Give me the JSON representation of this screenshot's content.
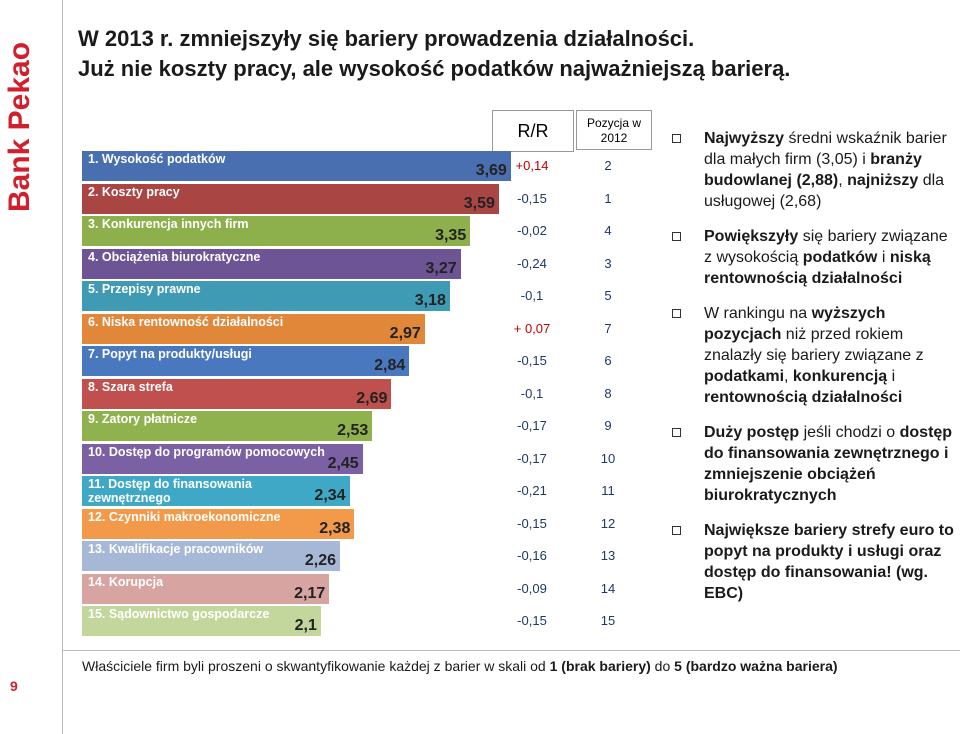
{
  "logo": "Bank Pekao",
  "page_number": "9",
  "title_lines": [
    "W 2013 r. zmniejszyły się bariery prowadzenia działalności.",
    "Już nie koszty pracy, ale wysokość podatków najważniejszą barierą."
  ],
  "chart_data": {
    "type": "bar",
    "categories": [
      "1. Wysokość podatków",
      "2. Koszty pracy",
      "3. Konkurencja innych firm",
      "4. Obciążenia biurokratyczne",
      "5. Przepisy prawne",
      "6. Niska rentowność działalności",
      "7. Popyt na produkty/usługi",
      "8. Szara strefa",
      "9. Zatory płatnicze",
      "10. Dostęp do programów pomocowych",
      "11. Dostęp do finansowania\nzewnętrznego",
      "12. Czynniki makroekonomiczne",
      "13. Kwalifikacje pracowników",
      "14. Korupcja",
      "15. Sądownictwo gospodarcze"
    ],
    "values": [
      3.69,
      3.59,
      3.35,
      3.27,
      3.18,
      2.97,
      2.84,
      2.69,
      2.53,
      2.45,
      2.34,
      2.38,
      2.26,
      2.17,
      2.1
    ],
    "value_labels": [
      "3,69",
      "3,59",
      "3,35",
      "3,27",
      "3,18",
      "2,97",
      "2,84",
      "2,69",
      "2,53",
      "2,45",
      "2,34",
      "2,38",
      "2,26",
      "2,17",
      "2,1"
    ],
    "colors": [
      "#4a6fb0",
      "#a94543",
      "#8db04c",
      "#6d5495",
      "#3f9ab4",
      "#e0873a",
      "#4a78bf",
      "#c0504d",
      "#90b24e",
      "#7b60a4",
      "#3fa8c6",
      "#f29a4a",
      "#a7b8d7",
      "#d8a4a2",
      "#c3d69b"
    ],
    "xlim": [
      0.1,
      3.75
    ],
    "rr_header": "R/R",
    "rr": [
      0.14,
      -0.15,
      -0.02,
      -0.24,
      -0.1,
      0.07,
      -0.15,
      -0.1,
      -0.17,
      -0.17,
      -0.21,
      -0.15,
      -0.16,
      -0.09,
      -0.15
    ],
    "rr_labels": [
      "+0,14",
      "-0,15",
      "-0,02",
      "-0,24",
      "-0,1",
      "+ 0,07",
      "-0,15",
      "-0,1",
      "-0,17",
      "-0,17",
      "-0,21",
      "-0,15",
      "-0,16",
      "-0,09",
      "-0,15"
    ],
    "pos_header": "Pozycja w 2012",
    "positions_2012": [
      2,
      1,
      4,
      3,
      5,
      7,
      6,
      8,
      9,
      10,
      11,
      12,
      13,
      14,
      15
    ]
  },
  "bullets": [
    [
      {
        "text": "Najwyższy",
        "bold": true
      },
      {
        "text": " średni wskaźnik barier dla małych firm (3,05) i ",
        "bold": false
      },
      {
        "text": "branży budowlanej (2,88)",
        "bold": true
      },
      {
        "text": ", ",
        "bold": false
      },
      {
        "text": "najniższy",
        "bold": true
      },
      {
        "text": " dla usługowej (2,68)",
        "bold": false
      }
    ],
    [
      {
        "text": "Powiększyły",
        "bold": true
      },
      {
        "text": " się bariery związane z wysokością ",
        "bold": false
      },
      {
        "text": "podatków",
        "bold": true
      },
      {
        "text": " i ",
        "bold": false
      },
      {
        "text": "niską rentownością działalności",
        "bold": true
      }
    ],
    [
      {
        "text": "W rankingu na ",
        "bold": false
      },
      {
        "text": "wyższych pozycjach",
        "bold": true
      },
      {
        "text": " niż przed rokiem znalazły się bariery związane z ",
        "bold": false
      },
      {
        "text": "podatkami",
        "bold": true
      },
      {
        "text": ", ",
        "bold": false
      },
      {
        "text": "konkurencją",
        "bold": true
      },
      {
        "text": " i ",
        "bold": false
      },
      {
        "text": "rentownością działalności",
        "bold": true
      }
    ],
    [
      {
        "text": "Duży postęp",
        "bold": true
      },
      {
        "text": " jeśli chodzi o ",
        "bold": false
      },
      {
        "text": "dostęp do finansowania zewnętrznego i zmniejszenie obciążeń biurokratycznych",
        "bold": true
      }
    ],
    [
      {
        "text": "Największe bariery strefy euro to popyt na produkty i usługi oraz dostęp do finansowania! (wg. EBC)",
        "bold": true
      }
    ]
  ],
  "footnote": [
    {
      "text": "Właściciele firm byli proszeni o skwantyfikowanie każdej z barier w skali od ",
      "bold": false
    },
    {
      "text": "1 (brak bariery)",
      "bold": true
    },
    {
      "text": " do ",
      "bold": false
    },
    {
      "text": "5 (bardzo ważna bariera)",
      "bold": true
    }
  ]
}
